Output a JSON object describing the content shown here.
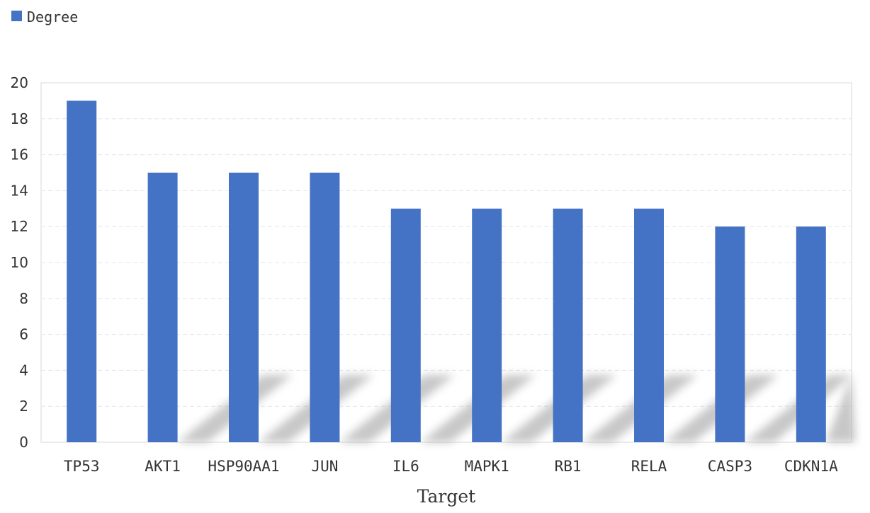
{
  "chart_data": {
    "type": "bar",
    "categories": [
      "TP53",
      "AKT1",
      "HSP90AA1",
      "JUN",
      "IL6",
      "MAPK1",
      "RB1",
      "RELA",
      "CASP3",
      "CDKN1A"
    ],
    "series": [
      {
        "name": "Degree",
        "values": [
          19,
          15,
          15,
          15,
          13,
          13,
          13,
          13,
          12,
          12
        ]
      }
    ],
    "title": "",
    "xlabel": "Target",
    "ylabel": "",
    "ylim": [
      0,
      20
    ],
    "yticks": [
      "0",
      "2",
      "4",
      "6",
      "8",
      "10",
      "12",
      "14",
      "16",
      "18",
      "20"
    ],
    "grid": true,
    "legend_position": "top-left",
    "colors": {
      "bar": "#4472C4",
      "grid": "#e6e6e6",
      "axis": "#d9d9d9"
    }
  }
}
